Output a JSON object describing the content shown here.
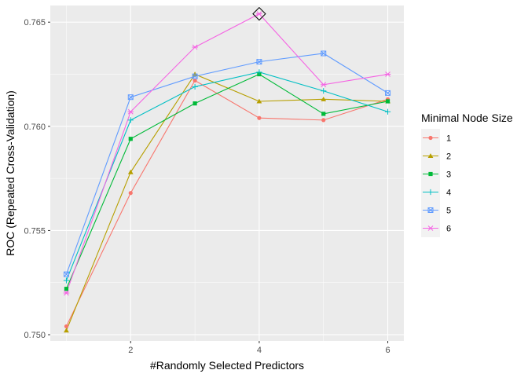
{
  "chart_data": {
    "type": "line",
    "x": [
      1,
      2,
      3,
      4,
      5,
      6
    ],
    "series": [
      {
        "name": "1",
        "color": "#F8766D",
        "marker": "circle",
        "values": [
          0.7504,
          0.7568,
          0.7622,
          0.7604,
          0.7603,
          0.7613
        ]
      },
      {
        "name": "2",
        "color": "#B79F00",
        "marker": "triangle",
        "values": [
          0.7502,
          0.7578,
          0.7625,
          0.7612,
          0.7613,
          0.7612
        ]
      },
      {
        "name": "3",
        "color": "#00BA38",
        "marker": "square",
        "values": [
          0.7522,
          0.7594,
          0.7611,
          0.7625,
          0.7606,
          0.7612
        ]
      },
      {
        "name": "4",
        "color": "#00BFC4",
        "marker": "plus",
        "values": [
          0.7526,
          0.7603,
          0.7619,
          0.7626,
          0.7617,
          0.7607
        ]
      },
      {
        "name": "5",
        "color": "#619CFF",
        "marker": "boxed-x",
        "values": [
          0.7529,
          0.7614,
          0.7624,
          0.7631,
          0.7635,
          0.7616
        ]
      },
      {
        "name": "6",
        "color": "#F564E3",
        "marker": "asterisk",
        "values": [
          0.752,
          0.7607,
          0.7638,
          0.7654,
          0.762,
          0.7625
        ]
      }
    ],
    "highlight": {
      "series": "6",
      "x": 4,
      "y": 0.7654,
      "marker": "diamond"
    },
    "xlabel": "#Randomly Selected Predictors",
    "ylabel": "ROC (Repeated Cross-Validation)",
    "xticks": [
      2,
      4,
      6
    ],
    "xtick_labels": [
      "2",
      "4",
      "6"
    ],
    "yticks": [
      0.75,
      0.755,
      0.76,
      0.765
    ],
    "ytick_labels": [
      "0.750",
      "0.755",
      "0.760",
      "0.765"
    ],
    "xlim": [
      0.75,
      6.25
    ],
    "ylim": [
      0.7497,
      0.7658
    ],
    "grid": true,
    "legend_title": "Minimal Node Size",
    "legend_position": "right",
    "panel_background": "#EBEBEB",
    "grid_color": "#FFFFFF"
  }
}
